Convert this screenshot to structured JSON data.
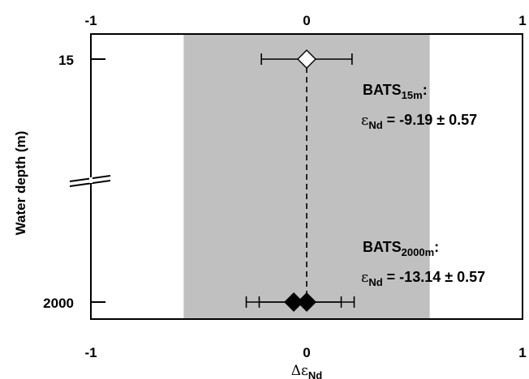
{
  "chart_data": {
    "type": "scatter",
    "title": "",
    "xlabel": {
      "symbol": "Δε",
      "sub": "Nd"
    },
    "ylabel": "Water depth (m)",
    "xlim": [
      -1,
      1
    ],
    "xticks": [
      "-1",
      "0",
      "1"
    ],
    "x2ticks": [
      "-1",
      "0",
      "1"
    ],
    "yticks": [
      "15",
      "2000"
    ],
    "y_axis_break": true,
    "grid": false,
    "band": {
      "x0": -0.57,
      "x1": 0.57,
      "color": "#c0c0c0"
    },
    "reference_line": {
      "x": 0,
      "style": "dashed"
    },
    "series": [
      {
        "marker": "open-diamond",
        "points": [
          {
            "x": 0.0,
            "y": 15,
            "xerr_low": -0.21,
            "xerr_high": 0.21
          }
        ]
      },
      {
        "marker": "filled-diamond",
        "points": [
          {
            "x": -0.06,
            "y": 2000,
            "xerr_low": -0.28,
            "xerr_high": 0.16
          },
          {
            "x": 0.0,
            "y": 2000,
            "xerr_low": -0.22,
            "xerr_high": 0.22
          }
        ]
      }
    ],
    "annotations": [
      {
        "site": "BATS",
        "site_sub": "15m",
        "eps": "ε",
        "eps_sub": "Nd",
        "value": "= -9.19 ± 0.57"
      },
      {
        "site": "BATS",
        "site_sub": "2000m",
        "eps": "ε",
        "eps_sub": "Nd",
        "value": "= -13.14 ± 0.57"
      }
    ],
    "colors": {
      "band": "#c0c0c0",
      "marker_filled": "#000000",
      "marker_open": "#ffffff",
      "axis": "#000000"
    }
  }
}
